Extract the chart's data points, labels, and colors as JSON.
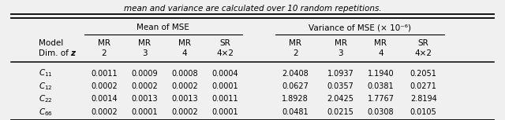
{
  "caption": "mean and variance are calculated over 10 random repetitions.",
  "header_group1": "Mean of MSE",
  "header_group2": "Variance of MSE (× 10⁻⁶)",
  "col_headers_row1": [
    "MR",
    "MR",
    "MR",
    "SR",
    "MR",
    "MR",
    "MR",
    "SR"
  ],
  "col_headers_row2": [
    "2",
    "3",
    "4",
    "4×2",
    "2",
    "3",
    "4",
    "4×2"
  ],
  "row_labels": [
    "$C_{11}$",
    "$C_{12}$",
    "$C_{22}$",
    "$C_{66}$"
  ],
  "data": [
    [
      "0.0011",
      "0.0009",
      "0.0008",
      "0.0004",
      "2.0408",
      "1.0937",
      "1.1940",
      "0.2051"
    ],
    [
      "0.0002",
      "0.0002",
      "0.0002",
      "0.0001",
      "0.0627",
      "0.0357",
      "0.0381",
      "0.0271"
    ],
    [
      "0.0014",
      "0.0013",
      "0.0013",
      "0.0011",
      "1.8928",
      "2.0425",
      "1.7767",
      "2.8194"
    ],
    [
      "0.0002",
      "0.0001",
      "0.0002",
      "0.0001",
      "0.0481",
      "0.0215",
      "0.0308",
      "0.0105"
    ]
  ],
  "model_label": "Model",
  "dim_label": "Dim. of ",
  "dim_bold": "z",
  "figsize": [
    6.4,
    1.53
  ],
  "dpi": 100,
  "bg_color": "#f0f0f0"
}
